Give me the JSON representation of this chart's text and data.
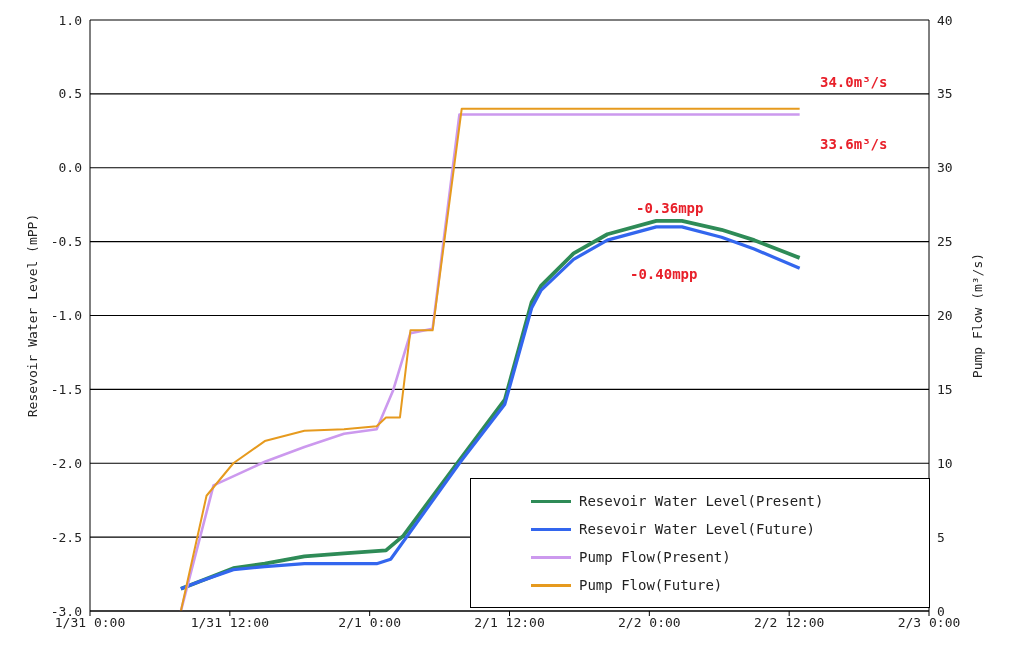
{
  "chart_data": {
    "type": "line",
    "ylabel": "Resevoir Water Level (mPP)",
    "y2label": "Pump Flow (m³/s)",
    "xlim": [
      "--01-31T00:00",
      "--02-03T00:00"
    ],
    "xticks": [
      {
        "value": "--01-31T00:00",
        "label": "1/31 0:00"
      },
      {
        "value": "--01-31T12:00",
        "label": "1/31 12:00"
      },
      {
        "value": "--02-01T00:00",
        "label": "2/1 0:00"
      },
      {
        "value": "--02-01T12:00",
        "label": "2/1 12:00"
      },
      {
        "value": "--02-02T00:00",
        "label": "2/2 0:00"
      },
      {
        "value": "--02-02T12:00",
        "label": "2/2 12:00"
      },
      {
        "value": "--02-03T00:00",
        "label": "2/3 0:00"
      }
    ],
    "ylim": [
      -3,
      1
    ],
    "yticks": [
      {
        "value": -3,
        "label": "-3.0"
      },
      {
        "value": -2.5,
        "label": "-2.5"
      },
      {
        "value": -2,
        "label": "-2.0"
      },
      {
        "value": -1.5,
        "label": "-1.5"
      },
      {
        "value": -1,
        "label": "-1.0"
      },
      {
        "value": -0.5,
        "label": "-0.5"
      },
      {
        "value": 0,
        "label": "0.0"
      },
      {
        "value": 0.5,
        "label": "0.5"
      },
      {
        "value": 1,
        "label": "1.0"
      }
    ],
    "y2lim": [
      0,
      40
    ],
    "y2ticks": [
      0,
      5,
      10,
      15,
      20,
      25,
      30,
      35,
      40
    ],
    "grid": "y",
    "legend": "bottom right",
    "marker": "none",
    "line_style": "solid",
    "annotations": [
      "34.0m³/s",
      "33.6m³/s",
      "-0.36mpp",
      "-0.40mpp"
    ],
    "series": [
      {
        "name": "Resevoir Water Level(Present)",
        "color": "#2e8b57",
        "x": [
          "--01-31T07:48",
          "--01-31T09:24",
          "--01-31T12:18",
          "--01-31T15:00",
          "--01-31T18:24",
          "--01-31T21:48",
          "--02-01T01:24",
          "--02-01T02:54",
          "--02-01T07:42",
          "--02-01T11:36",
          "--02-01T13:54",
          "--02-01T14:42",
          "--02-01T17:30",
          "--02-01T20:24",
          "--02-02T00:36",
          "--02-02T02:48",
          "--02-02T06:12",
          "--02-02T09:00",
          "--02-02T12:54"
        ],
        "values": [
          -2.85,
          -2.8,
          -2.71,
          -2.68,
          -2.63,
          -2.61,
          -2.59,
          -2.49,
          -1.98,
          -1.57,
          -0.91,
          -0.8,
          -0.58,
          -0.45,
          -0.36,
          -0.36,
          -0.42,
          -0.49,
          -0.61
        ]
      },
      {
        "name": "Resevoir Water Level(Future)",
        "color": "#3366ee",
        "x": [
          "--01-31T07:48",
          "--01-31T09:24",
          "--01-31T12:18",
          "--01-31T15:00",
          "--01-31T18:24",
          "--01-31T21:48",
          "--02-01T00:36",
          "--02-01T01:48",
          "--02-01T07:42",
          "--02-01T11:36",
          "--02-01T13:54",
          "--02-01T14:42",
          "--02-01T17:30",
          "--02-01T20:24",
          "--02-02T00:36",
          "--02-02T02:48",
          "--02-02T06:12",
          "--02-02T09:00",
          "--02-02T12:54"
        ],
        "values": [
          -2.85,
          -2.8,
          -2.72,
          -2.7,
          -2.68,
          -2.68,
          -2.68,
          -2.65,
          -2,
          -1.6,
          -0.95,
          -0.83,
          -0.62,
          -0.49,
          -0.4,
          -0.4,
          -0.47,
          -0.55,
          -0.68
        ]
      },
      {
        "name": "Pump Flow(Present)",
        "color": "#cc99ee",
        "axis": "y2",
        "x": [
          "--01-31T07:48",
          "--01-31T10:36",
          "--01-31T15:00",
          "--01-31T18:24",
          "--01-31T21:48",
          "--02-01T00:36",
          "--02-01T02:00",
          "--02-01T03:30",
          "--02-01T05:24",
          "--02-01T07:42",
          "--02-02T12:54"
        ],
        "values": [
          0,
          8.5,
          10.1,
          11.1,
          12,
          12.3,
          14.9,
          18.8,
          19.1,
          33.6,
          33.6
        ]
      },
      {
        "name": "Pump Flow(Future)",
        "color": "#e69a1e",
        "axis": "y2",
        "x": [
          "--01-31T07:48",
          "--01-31T10:00",
          "--01-31T12:18",
          "--01-31T15:00",
          "--01-31T18:24",
          "--01-31T21:48",
          "--02-01T00:36",
          "--02-01T01:24",
          "--02-01T02:36",
          "--02-01T03:30",
          "--02-01T05:24",
          "--02-01T07:54",
          "--02-02T12:54"
        ],
        "values": [
          0,
          7.8,
          10,
          11.5,
          12.2,
          12.3,
          12.5,
          13.1,
          13.1,
          19,
          19,
          34,
          34
        ]
      }
    ]
  }
}
